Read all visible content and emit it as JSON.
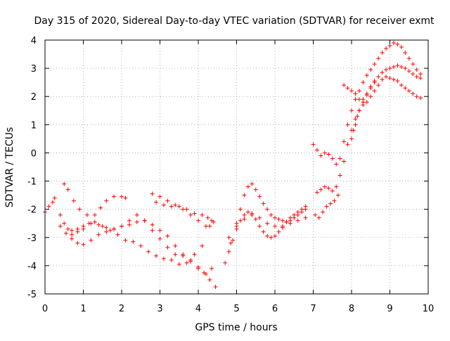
{
  "chart_data": {
    "type": "scatter",
    "title": "Day 315 of 2020, Sidereal Day-to-day VTEC variation (SDTVAR) for receiver exmt",
    "xlabel": "GPS time / hours",
    "ylabel": "SDTVAR / TECUs",
    "xlim": [
      0,
      10
    ],
    "ylim": [
      -5,
      4
    ],
    "x_ticks": [
      "0",
      "1",
      "2",
      "3",
      "4",
      "5",
      "6",
      "7",
      "8",
      "9",
      "10"
    ],
    "y_ticks": [
      "-5",
      "-4",
      "-3",
      "-2",
      "-1",
      "0",
      "1",
      "2",
      "3",
      "4"
    ],
    "grid": true,
    "marker": "plus",
    "color": "#ff0000",
    "series": [
      {
        "x": [
          0.0,
          0.1,
          0.2,
          0.25,
          0.4,
          0.5,
          0.6,
          0.7,
          0.85,
          1.0,
          1.2,
          1.4,
          1.6,
          1.8,
          2.0,
          2.2,
          2.4,
          2.6,
          2.8,
          3.0,
          3.2,
          3.4,
          3.6,
          3.8,
          4.0,
          4.15,
          4.3,
          4.45
        ],
        "y": [
          -2.1,
          -1.9,
          -1.75,
          -1.6,
          -2.2,
          -2.5,
          -2.7,
          -2.75,
          -2.7,
          -2.6,
          -2.5,
          -2.55,
          -2.65,
          -2.7,
          -2.6,
          -2.55,
          -2.45,
          -2.4,
          -2.55,
          -2.75,
          -2.95,
          -3.3,
          -3.6,
          -3.85,
          -4.05,
          -4.25,
          -4.5,
          -4.75
        ]
      },
      {
        "x": [
          0.5,
          0.6,
          0.75,
          0.9,
          1.1,
          1.3,
          1.5,
          1.7,
          1.9,
          2.1,
          2.3,
          2.5,
          2.7,
          2.9,
          3.1,
          3.3,
          3.5,
          3.7,
          3.9,
          4.1
        ],
        "y": [
          -1.1,
          -1.3,
          -1.7,
          -2.0,
          -2.2,
          -2.45,
          -2.6,
          -2.75,
          -2.9,
          -3.1,
          -3.15,
          -3.3,
          -3.5,
          -3.65,
          -3.75,
          -3.8,
          -3.95,
          -3.9,
          -3.6,
          -3.3
        ]
      },
      {
        "x": [
          0.4,
          0.55,
          0.7,
          0.85,
          1.0,
          1.2,
          1.4,
          1.6,
          1.8,
          2.0,
          2.2,
          2.4,
          2.6,
          2.8,
          3.0,
          3.2,
          3.4,
          3.6,
          3.8,
          4.0,
          4.2,
          4.35
        ],
        "y": [
          -2.6,
          -2.85,
          -3.05,
          -3.2,
          -3.25,
          -3.1,
          -2.9,
          -2.8,
          -2.7,
          -2.6,
          -2.4,
          -2.2,
          -2.4,
          -2.75,
          -3.05,
          -3.35,
          -3.6,
          -3.65,
          -3.8,
          -4.1,
          -4.3,
          -4.1
        ]
      },
      {
        "x": [
          0.7,
          0.85,
          1.0,
          1.15,
          1.3,
          1.45,
          1.6,
          1.8,
          2.0,
          2.1
        ],
        "y": [
          -2.9,
          -2.8,
          -2.7,
          -2.5,
          -2.2,
          -1.95,
          -1.7,
          -1.55,
          -1.55,
          -1.6
        ]
      },
      {
        "x": [
          2.8,
          3.0,
          3.2,
          3.4,
          3.6,
          3.8,
          4.0,
          4.2,
          4.3,
          4.4
        ],
        "y": [
          -1.45,
          -1.55,
          -1.7,
          -1.85,
          -2.0,
          -2.2,
          -2.4,
          -2.6,
          -2.6,
          -2.45
        ]
      },
      {
        "x": [
          2.9,
          3.1,
          3.3,
          3.5,
          3.7,
          3.9,
          4.1,
          4.25,
          4.35
        ],
        "y": [
          -1.75,
          -1.85,
          -1.9,
          -1.9,
          -2.0,
          -2.15,
          -2.2,
          -2.3,
          -2.4
        ]
      },
      {
        "x": [
          4.7,
          4.8,
          4.9,
          5.0,
          5.1,
          5.2,
          5.3,
          5.4,
          5.5,
          5.6,
          5.7,
          5.8,
          5.9,
          6.0,
          6.1,
          6.2,
          6.3,
          6.4,
          6.5,
          6.6,
          6.7,
          6.8
        ],
        "y": [
          -3.9,
          -3.5,
          -3.1,
          -2.7,
          -2.4,
          -2.2,
          -2.1,
          -2.15,
          -2.35,
          -2.6,
          -2.8,
          -2.95,
          -3.0,
          -2.95,
          -2.8,
          -2.65,
          -2.45,
          -2.3,
          -2.2,
          -2.1,
          -2.0,
          -1.9
        ]
      },
      {
        "x": [
          4.85,
          5.0,
          5.1,
          5.2,
          5.3,
          5.4,
          5.5,
          5.6,
          5.7,
          5.8,
          5.9,
          6.0,
          6.1,
          6.2,
          6.3,
          6.4,
          6.5,
          6.6,
          6.7,
          6.8
        ],
        "y": [
          -3.2,
          -2.5,
          -2.0,
          -1.5,
          -1.2,
          -1.1,
          -1.3,
          -1.55,
          -1.8,
          -2.0,
          -2.2,
          -2.3,
          -2.35,
          -2.4,
          -2.45,
          -2.4,
          -2.3,
          -2.2,
          -2.1,
          -2.0
        ]
      },
      {
        "x": [
          4.8,
          5.0,
          5.2,
          5.4,
          5.6,
          5.8,
          6.0,
          6.2,
          6.4,
          6.6,
          6.8
        ],
        "y": [
          -3.0,
          -2.6,
          -2.35,
          -2.2,
          -2.3,
          -2.5,
          -2.6,
          -2.6,
          -2.5,
          -2.4,
          -2.3
        ]
      },
      {
        "x": [
          7.0,
          7.1,
          7.2,
          7.3,
          7.4,
          7.5,
          7.6,
          7.7,
          7.8,
          7.9,
          8.0,
          8.1,
          8.2,
          8.3,
          8.4,
          8.5,
          8.6,
          8.7,
          8.8,
          8.9,
          9.0,
          9.1,
          9.2,
          9.3,
          9.4,
          9.5,
          9.6,
          9.7,
          9.8
        ],
        "y": [
          0.3,
          0.1,
          -0.1,
          0.0,
          -0.05,
          -0.2,
          -0.4,
          -0.2,
          0.4,
          1.0,
          1.5,
          1.9,
          2.2,
          2.5,
          2.75,
          2.95,
          3.15,
          3.35,
          3.55,
          3.7,
          3.8,
          3.9,
          3.85,
          3.75,
          3.55,
          3.35,
          3.15,
          2.95,
          2.8
        ]
      },
      {
        "x": [
          7.1,
          7.2,
          7.3,
          7.4,
          7.5,
          7.6,
          7.7,
          7.8,
          7.9,
          8.0,
          8.1,
          8.2,
          8.3,
          8.4,
          8.5,
          8.6,
          8.7,
          8.8,
          8.9,
          9.0,
          9.1,
          9.2,
          9.3,
          9.4,
          9.5,
          9.6,
          9.7,
          9.8
        ],
        "y": [
          -1.4,
          -1.3,
          -1.2,
          -1.25,
          -1.35,
          -1.2,
          -0.8,
          -0.3,
          0.3,
          0.8,
          1.2,
          1.5,
          1.8,
          2.05,
          2.35,
          2.55,
          2.7,
          2.85,
          2.95,
          3.0,
          3.05,
          3.1,
          3.05,
          3.0,
          2.9,
          2.8,
          2.7,
          2.65
        ]
      },
      {
        "x": [
          7.05,
          7.15,
          7.25,
          7.35,
          7.45,
          7.55,
          7.65,
          7.8,
          7.9,
          8.0,
          8.1,
          8.2,
          8.3,
          8.4,
          8.5,
          8.6,
          8.7,
          8.8,
          8.9,
          9.0,
          9.1,
          9.2,
          9.3,
          9.4,
          9.5,
          9.6,
          9.7,
          9.8
        ],
        "y": [
          -2.2,
          -2.3,
          -2.1,
          -1.9,
          -1.8,
          -1.7,
          -1.5,
          2.4,
          2.3,
          2.2,
          2.1,
          1.9,
          1.7,
          1.8,
          2.0,
          2.2,
          2.4,
          2.6,
          2.7,
          2.65,
          2.6,
          2.55,
          2.4,
          2.3,
          2.2,
          2.1,
          2.0,
          1.95
        ]
      },
      {
        "x": [
          8.0,
          8.05,
          8.1,
          8.15,
          8.2,
          8.3,
          8.4,
          8.5,
          8.6
        ],
        "y": [
          0.5,
          0.8,
          1.0,
          1.3,
          1.5,
          1.9,
          2.1,
          2.3,
          2.5
        ]
      }
    ]
  }
}
